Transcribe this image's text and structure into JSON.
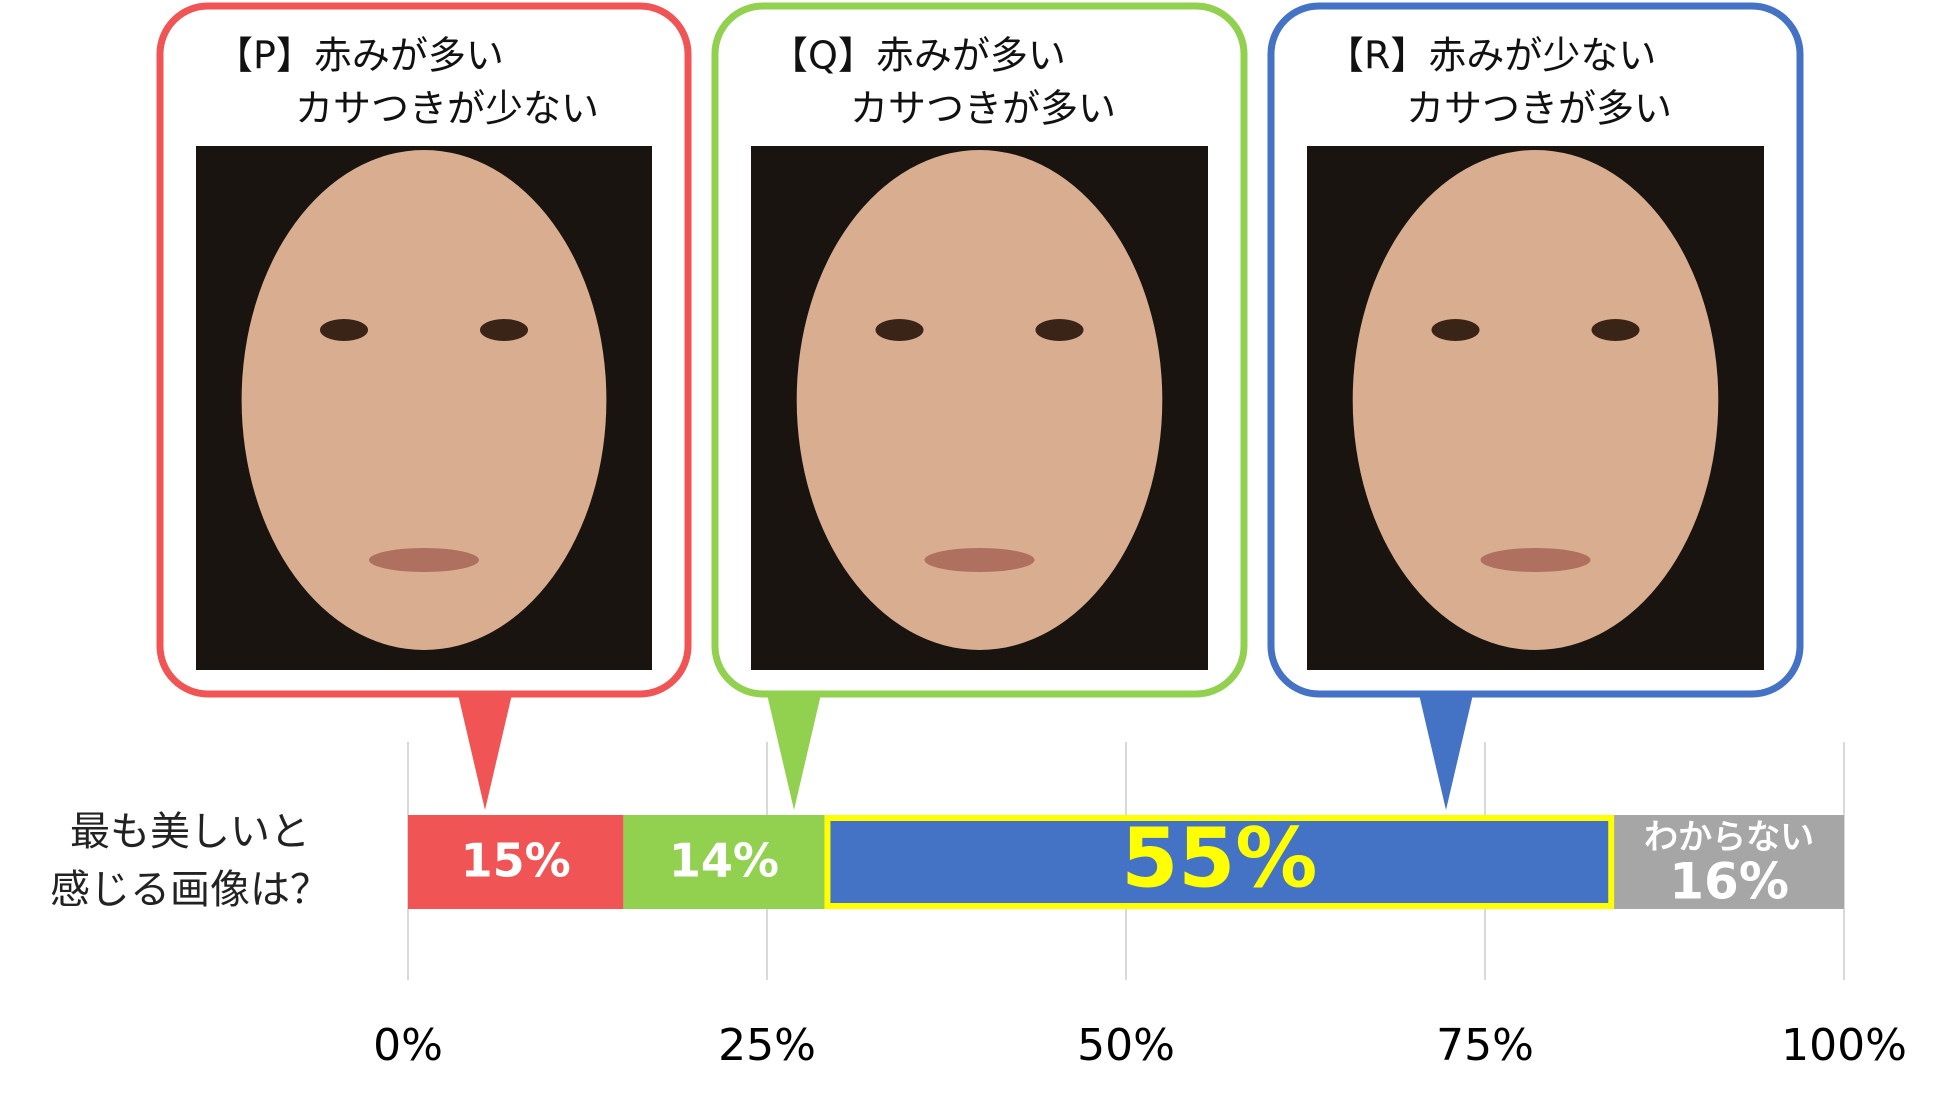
{
  "chart_data": {
    "type": "stacked_bar",
    "question": [
      "最も美しいと",
      "感じる画像は？"
    ],
    "series": [
      {
        "name": [
          "【P】赤みが多い",
          "カサつきが少ない"
        ],
        "color": "#f05454",
        "values": [
          15
        ],
        "value_labels": [
          "15%"
        ]
      },
      {
        "name": [
          "【Q】赤みが多い",
          "カサつきが多い"
        ],
        "color": "#92d050",
        "values": [
          14
        ],
        "value_labels": [
          "14%"
        ]
      },
      {
        "name": [
          "【R】赤みが少ない",
          "カサつきが多い"
        ],
        "color": "#4472c4",
        "values": [
          55
        ],
        "value_labels": [
          "55%"
        ],
        "highlight": "#ffff00"
      },
      {
        "name": "わからない",
        "color": "#a6a6a6",
        "values": [
          16
        ],
        "value_labels": [
          "16%"
        ]
      }
    ],
    "xlim": [
      0,
      100
    ],
    "xticks": [
      {
        "value": 0,
        "label": "0%"
      },
      {
        "value": 25,
        "label": "25%"
      },
      {
        "value": 50,
        "label": "50%"
      },
      {
        "value": 75,
        "label": "75%"
      },
      {
        "value": 100,
        "label": "100%"
      }
    ],
    "grid": true
  }
}
